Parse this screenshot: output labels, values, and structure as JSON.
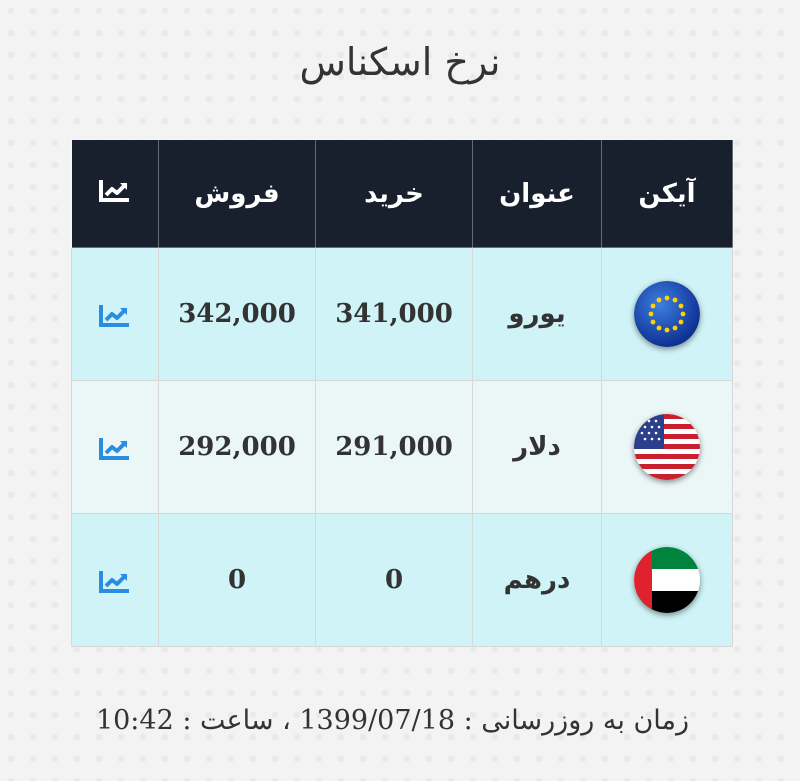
{
  "title": "نرخ اسکناس",
  "table": {
    "headers": {
      "icon": "آیکن",
      "name": "عنوان",
      "buy": "خرید",
      "sell": "فروش",
      "chart_icon": "chart-icon"
    },
    "rows": [
      {
        "name": "یورو",
        "buy": "341,000",
        "sell": "342,000",
        "flag_icon": "eu-flag-icon"
      },
      {
        "name": "دلار",
        "buy": "291,000",
        "sell": "292,000",
        "flag_icon": "us-flag-icon"
      },
      {
        "name": "درهم",
        "buy": "0",
        "sell": "0",
        "flag_icon": "uae-flag-icon"
      }
    ]
  },
  "footer": {
    "text": "زمان به روزرسانی : 1399/07/18 ، ساعت : 10:42"
  },
  "colors": {
    "header_bg": "#18202d",
    "row_alt_a": "#cff3f6",
    "row_alt_b": "#ebf6f7",
    "chart_icon": "#2a8de0"
  }
}
